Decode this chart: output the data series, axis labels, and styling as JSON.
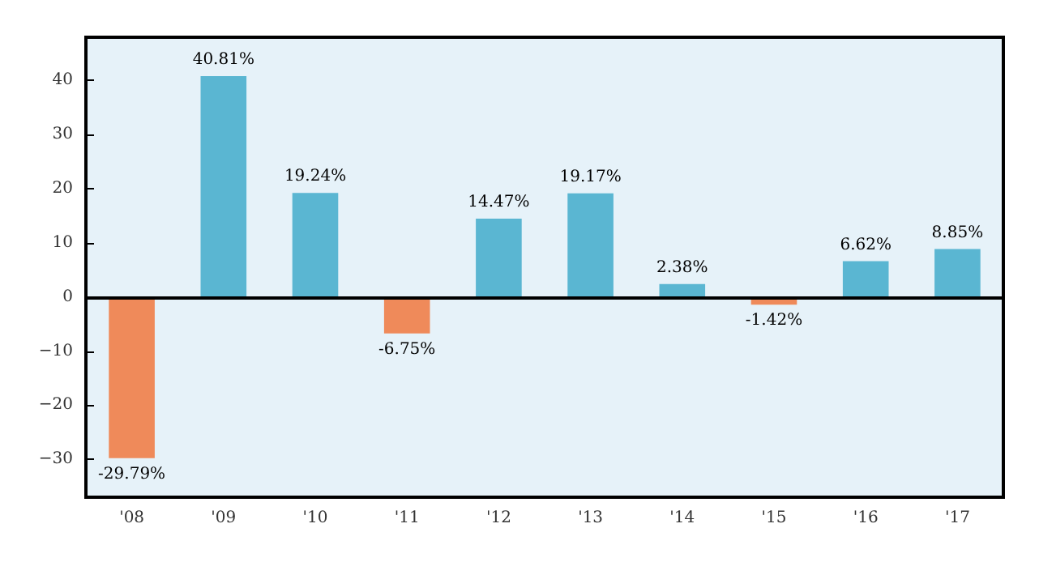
{
  "chart_data": {
    "type": "bar",
    "categories": [
      "'08",
      "'09",
      "'10",
      "'11",
      "'12",
      "'13",
      "'14",
      "'15",
      "'16",
      "'17"
    ],
    "values": [
      -29.79,
      40.81,
      19.24,
      -6.75,
      14.47,
      19.17,
      2.38,
      -1.42,
      6.62,
      8.85
    ],
    "colors": [
      "#ef8a5a",
      "#5ab6d2",
      "#5ab6d2",
      "#ef8a5a",
      "#5ab6d2",
      "#5ab6d2",
      "#5ab6d2",
      "#ef8a5a",
      "#5ab6d2",
      "#5ab6d2"
    ],
    "value_labels": [
      "-29.79%",
      "40.81%",
      "19.24%",
      "-6.75%",
      "14.47%",
      "19.17%",
      "2.38%",
      "-1.42%",
      "6.62%",
      "8.85%"
    ],
    "ylim": [
      -37,
      48
    ],
    "yticks": [
      {
        "value": -30,
        "label": "−30"
      },
      {
        "value": -20,
        "label": "−20"
      },
      {
        "value": -10,
        "label": "−10"
      },
      0,
      10,
      20,
      30,
      40
    ],
    "ref_lines": [
      {
        "axis": "y",
        "value": 0,
        "color": "#000000"
      }
    ],
    "grid": false
  }
}
